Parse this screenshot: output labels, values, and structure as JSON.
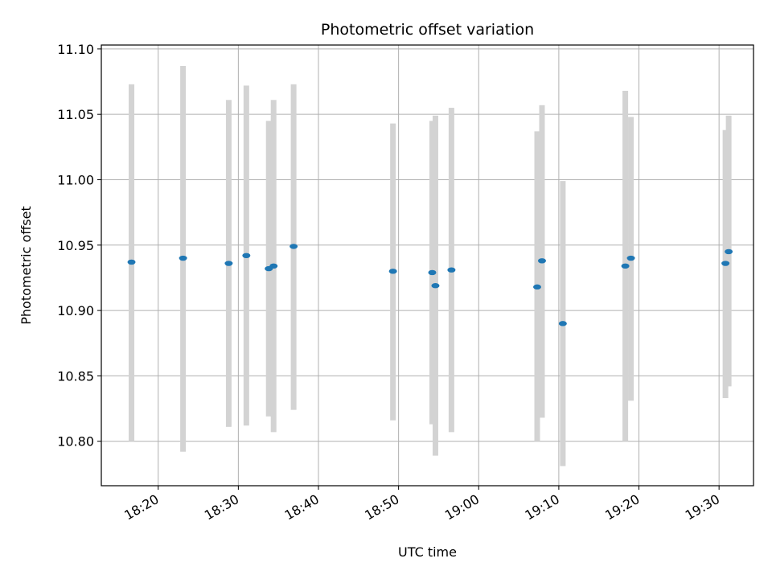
{
  "chart_data": {
    "type": "scatter",
    "title": "Photometric offset variation",
    "xlabel": "UTC time",
    "ylabel": "Photometric offset",
    "x_ticks": [
      "18:20",
      "18:30",
      "18:40",
      "18:50",
      "19:00",
      "19:10",
      "19:20",
      "19:30"
    ],
    "x_tick_minutes": [
      1100,
      1110,
      1120,
      1130,
      1140,
      1150,
      1160,
      1170
    ],
    "y_ticks": [
      "10.80",
      "10.85",
      "10.90",
      "10.95",
      "11.00",
      "11.05",
      "11.10"
    ],
    "y_tick_values": [
      10.8,
      10.85,
      10.9,
      10.95,
      11.0,
      11.05,
      11.1
    ],
    "xlim_minutes": [
      1092.9,
      1174.3
    ],
    "ylim": [
      10.766,
      11.103
    ],
    "grid": true,
    "marker_color": "#1f77b4",
    "errorbar_color": "#d3d3d3",
    "series": [
      {
        "points": [
          {
            "t": "18:16:40",
            "y": 10.937,
            "ylo": 10.8,
            "yhi": 11.073
          },
          {
            "t": "18:23:06",
            "y": 10.94,
            "ylo": 10.792,
            "yhi": 11.087
          },
          {
            "t": "18:28:48",
            "y": 10.936,
            "ylo": 10.811,
            "yhi": 11.061
          },
          {
            "t": "18:31:00",
            "y": 10.942,
            "ylo": 10.812,
            "yhi": 11.072
          },
          {
            "t": "18:33:48",
            "y": 10.932,
            "ylo": 10.819,
            "yhi": 11.045
          },
          {
            "t": "18:34:24",
            "y": 10.934,
            "ylo": 10.807,
            "yhi": 11.061
          },
          {
            "t": "18:36:54",
            "y": 10.949,
            "ylo": 10.824,
            "yhi": 11.073
          },
          {
            "t": "18:49:18",
            "y": 10.93,
            "ylo": 10.816,
            "yhi": 11.043
          },
          {
            "t": "18:54:12",
            "y": 10.929,
            "ylo": 10.813,
            "yhi": 11.045
          },
          {
            "t": "18:54:36",
            "y": 10.919,
            "ylo": 10.789,
            "yhi": 11.049
          },
          {
            "t": "18:56:36",
            "y": 10.931,
            "ylo": 10.807,
            "yhi": 11.055
          },
          {
            "t": "19:07:18",
            "y": 10.918,
            "ylo": 10.8,
            "yhi": 11.037
          },
          {
            "t": "19:07:54",
            "y": 10.938,
            "ylo": 10.818,
            "yhi": 11.057
          },
          {
            "t": "19:10:30",
            "y": 10.89,
            "ylo": 10.781,
            "yhi": 10.999
          },
          {
            "t": "19:18:18",
            "y": 10.934,
            "ylo": 10.8,
            "yhi": 11.068
          },
          {
            "t": "19:19:00",
            "y": 10.94,
            "ylo": 10.831,
            "yhi": 11.048
          },
          {
            "t": "19:30:48",
            "y": 10.936,
            "ylo": 10.833,
            "yhi": 11.038
          },
          {
            "t": "19:31:12",
            "y": 10.945,
            "ylo": 10.842,
            "yhi": 11.049
          }
        ]
      }
    ]
  }
}
